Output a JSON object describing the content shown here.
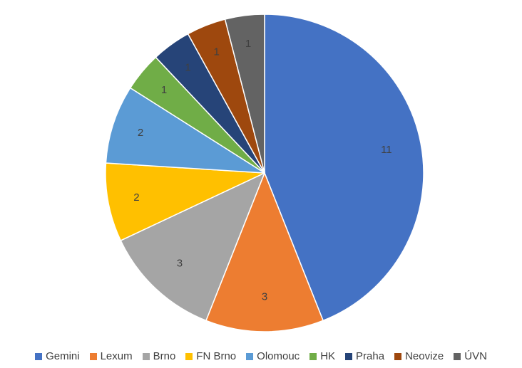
{
  "chart_data": {
    "type": "pie",
    "title": "",
    "legend_position": "bottom",
    "slices": [
      {
        "name": "Gemini",
        "value": 11,
        "color": "#4472C4",
        "label_color": "#404040"
      },
      {
        "name": "Lexum",
        "value": 3,
        "color": "#ED7D31",
        "label_color": "#404040"
      },
      {
        "name": "Brno",
        "value": 3,
        "color": "#A5A5A5",
        "label_color": "#404040"
      },
      {
        "name": "FN Brno",
        "value": 2,
        "color": "#FFC000",
        "label_color": "#404040"
      },
      {
        "name": "Olomouc",
        "value": 2,
        "color": "#5B9BD5",
        "label_color": "#404040"
      },
      {
        "name": "HK",
        "value": 1,
        "color": "#70AD47",
        "label_color": "#404040"
      },
      {
        "name": "Praha",
        "value": 1,
        "color": "#264478",
        "label_color": "#404040"
      },
      {
        "name": "Neovize",
        "value": 1,
        "color": "#9E480E",
        "label_color": "#404040"
      },
      {
        "name": "ÚVN",
        "value": 1,
        "color": "#636363",
        "label_color": "#404040"
      }
    ]
  }
}
